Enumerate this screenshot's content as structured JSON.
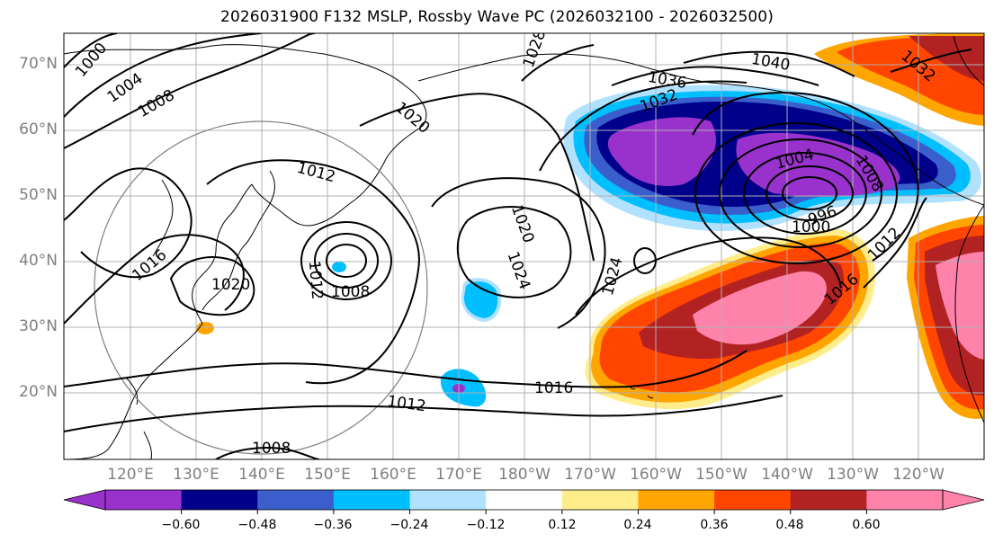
{
  "title": "2026031900 F132 MSLP, Rossby Wave PC (2026032100 - 2026032500)",
  "axes": {
    "lat_labels": [
      "70°N",
      "60°N",
      "50°N",
      "40°N",
      "30°N",
      "20°N"
    ],
    "lon_labels": [
      "120°E",
      "130°E",
      "140°E",
      "150°E",
      "160°E",
      "170°E",
      "180°W",
      "170°W",
      "160°W",
      "150°W",
      "140°W",
      "130°W",
      "120°W"
    ]
  },
  "colorbar": {
    "colors": [
      "#9932cc",
      "#00008b",
      "#3a5fcd",
      "#00bfff",
      "#b0e2ff",
      "#ffffff",
      "#ffec8b",
      "#ffa500",
      "#ff4500",
      "#b22222",
      "#ff82ab"
    ],
    "ticks": [
      "−0.60",
      "−0.48",
      "−0.36",
      "−0.24",
      "−0.12",
      "0.12",
      "0.24",
      "0.36",
      "0.48",
      "0.60"
    ]
  },
  "isobar_labels": [
    "1000",
    "1004",
    "1008",
    "1012",
    "1016",
    "1020",
    "1008",
    "1012",
    "1020",
    "1020",
    "1024",
    "1024",
    "1016",
    "1012",
    "1008",
    "1028",
    "1032",
    "1036",
    "1040",
    "1004",
    "1008",
    "996",
    "1000",
    "1012",
    "1016",
    "1032"
  ]
}
